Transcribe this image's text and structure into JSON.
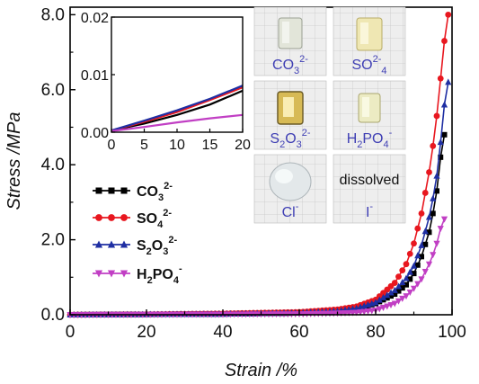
{
  "chart_data": [
    {
      "type": "line",
      "xlabel": "Strain /%",
      "ylabel": "Stress /MPa",
      "xlim": [
        0,
        100
      ],
      "ylim": [
        0,
        8.2
      ],
      "xticks": [
        "0",
        "20",
        "40",
        "60",
        "80",
        "100"
      ],
      "yticks": [
        "0.0",
        "2.0",
        "4.0",
        "6.0",
        "8.0"
      ],
      "legend_position": "left-middle",
      "series": [
        {
          "name": "CO32-",
          "name_base": "CO",
          "name_sub": "3",
          "name_sup": "2-",
          "color": "#000000",
          "marker": "square",
          "points": [
            [
              0,
              0
            ],
            [
              20,
              0.01
            ],
            [
              40,
              0.02
            ],
            [
              60,
              0.05
            ],
            [
              70,
              0.1
            ],
            [
              75,
              0.15
            ],
            [
              80,
              0.3
            ],
            [
              85,
              0.55
            ],
            [
              88,
              0.8
            ],
            [
              90,
              1.1
            ],
            [
              92,
              1.55
            ],
            [
              94,
              2.2
            ],
            [
              95,
              2.7
            ],
            [
              96,
              3.3
            ],
            [
              97,
              4.2
            ],
            [
              98,
              4.8
            ]
          ]
        },
        {
          "name": "SO42-",
          "name_base": "SO",
          "name_sub": "4",
          "name_sup": "2-",
          "color": "#e8171f",
          "marker": "circle",
          "points": [
            [
              0,
              0
            ],
            [
              20,
              0.01
            ],
            [
              40,
              0.03
            ],
            [
              60,
              0.07
            ],
            [
              70,
              0.14
            ],
            [
              75,
              0.22
            ],
            [
              80,
              0.4
            ],
            [
              85,
              0.85
            ],
            [
              88,
              1.35
            ],
            [
              90,
              1.9
            ],
            [
              92,
              2.7
            ],
            [
              94,
              3.8
            ],
            [
              95,
              4.5
            ],
            [
              96,
              5.3
            ],
            [
              97,
              6.3
            ],
            [
              98,
              7.3
            ],
            [
              99,
              8.0
            ]
          ]
        },
        {
          "name": "S2O32-",
          "name_base": "S",
          "name_sub": "2",
          "name_base2": "O",
          "name_sub2": "3",
          "name_sup": "2-",
          "color": "#1f2fa3",
          "marker": "triangle",
          "points": [
            [
              0,
              0
            ],
            [
              20,
              0.01
            ],
            [
              40,
              0.02
            ],
            [
              60,
              0.05
            ],
            [
              70,
              0.1
            ],
            [
              75,
              0.17
            ],
            [
              80,
              0.33
            ],
            [
              85,
              0.65
            ],
            [
              88,
              0.97
            ],
            [
              90,
              1.3
            ],
            [
              92,
              1.85
            ],
            [
              94,
              2.6
            ],
            [
              95,
              3.1
            ],
            [
              96,
              3.7
            ],
            [
              97,
              4.6
            ],
            [
              98,
              5.6
            ],
            [
              99,
              6.2
            ]
          ]
        },
        {
          "name": "H2PO4-",
          "name_base": "H",
          "name_sub": "2",
          "name_base2": "PO",
          "name_sub2": "4",
          "name_sup": "-",
          "color": "#c13fc4",
          "marker": "triangle-down",
          "points": [
            [
              0,
              0
            ],
            [
              20,
              0.005
            ],
            [
              40,
              0.01
            ],
            [
              60,
              0.02
            ],
            [
              70,
              0.04
            ],
            [
              75,
              0.06
            ],
            [
              80,
              0.12
            ],
            [
              85,
              0.3
            ],
            [
              88,
              0.5
            ],
            [
              90,
              0.7
            ],
            [
              92,
              0.95
            ],
            [
              94,
              1.35
            ],
            [
              95,
              1.6
            ],
            [
              96,
              1.9
            ],
            [
              97,
              2.3
            ],
            [
              98,
              2.55
            ]
          ]
        }
      ]
    },
    {
      "type": "line",
      "inset": true,
      "xlim": [
        0,
        20
      ],
      "ylim": [
        0,
        0.02
      ],
      "xticks": [
        "0",
        "5",
        "10",
        "15",
        "20"
      ],
      "yticks": [
        "0.00",
        "0.01",
        "0.02"
      ],
      "series": [
        {
          "name": "CO32-",
          "color": "#000000",
          "points": [
            [
              0,
              0.0003
            ],
            [
              5,
              0.0015
            ],
            [
              10,
              0.003
            ],
            [
              15,
              0.0048
            ],
            [
              20,
              0.0072
            ]
          ]
        },
        {
          "name": "SO42-",
          "color": "#e8171f",
          "points": [
            [
              0,
              0.0003
            ],
            [
              5,
              0.0018
            ],
            [
              10,
              0.0035
            ],
            [
              15,
              0.0056
            ],
            [
              20,
              0.0078
            ]
          ]
        },
        {
          "name": "S2O32-",
          "color": "#1f2fa3",
          "points": [
            [
              0,
              0.0003
            ],
            [
              5,
              0.002
            ],
            [
              10,
              0.0038
            ],
            [
              15,
              0.0058
            ],
            [
              20,
              0.0081
            ]
          ]
        },
        {
          "name": "H2PO4-",
          "color": "#c13fc4",
          "points": [
            [
              0,
              0.0002
            ],
            [
              5,
              0.0009
            ],
            [
              10,
              0.0017
            ],
            [
              15,
              0.0024
            ],
            [
              20,
              0.003
            ]
          ]
        }
      ]
    }
  ],
  "photos": [
    {
      "label_base": "CO",
      "label_sub": "3",
      "label_sup": "2-",
      "content": "gel-clear-block"
    },
    {
      "label_base": "SO",
      "label_sub": "",
      "label_sup": "2-",
      "label_sub_after": "4",
      "content": "gel-yellow-block"
    },
    {
      "label_base": "S",
      "label_sub": "2",
      "label_base2": "O",
      "label_sub2": "3",
      "label_sup": "2-",
      "content": "gel-gold-block"
    },
    {
      "label_base": "H",
      "label_sub": "2",
      "label_base2": "PO",
      "label_sub2": "4",
      "label_sup": "-",
      "content": "gel-pale-block"
    },
    {
      "label_base": "Cl",
      "label_sup": "-",
      "content": "gel-droplet"
    },
    {
      "label_base": "I",
      "label_sup": "-",
      "note": "dissolved",
      "content": "none"
    }
  ],
  "colors": {
    "photo_label": "#3f3fb4",
    "grid_paper": "#eeeeee",
    "grid_line": "#c9c9c9"
  }
}
